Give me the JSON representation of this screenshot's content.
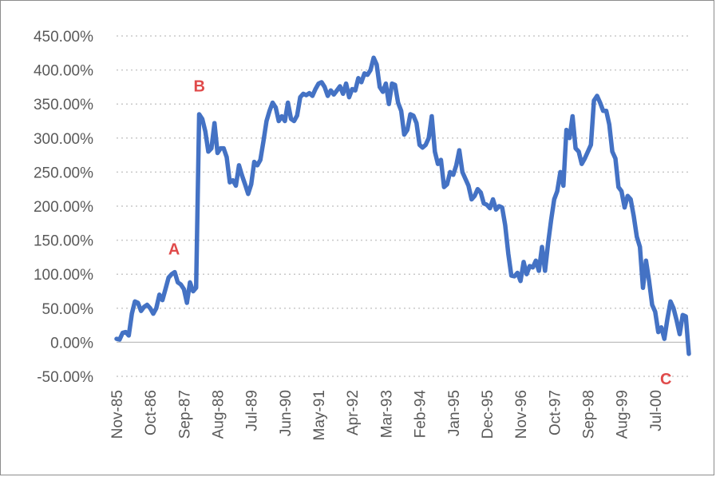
{
  "chart_data": {
    "type": "line",
    "title": "",
    "xlabel": "",
    "ylabel": "",
    "ylim": [
      -50,
      450
    ],
    "y_ticks": [
      450,
      400,
      350,
      300,
      250,
      200,
      150,
      100,
      50,
      0,
      -50
    ],
    "y_tick_labels": [
      "450.00%",
      "400.00%",
      "350.00%",
      "300.00%",
      "250.00%",
      "200.00%",
      "150.00%",
      "100.00%",
      "50.00%",
      "0.00%",
      "-50.00%"
    ],
    "x_tick_labels": [
      "Nov-85",
      "Oct-86",
      "Sep-87",
      "Aug-88",
      "Jul-89",
      "Jun-90",
      "May-91",
      "Apr-92",
      "Mar-93",
      "Feb-94",
      "Jan-95",
      "Dec-95",
      "Nov-96",
      "Oct-97",
      "Sep-98",
      "Aug-99",
      "Jul-00"
    ],
    "x_start": "Nov-85",
    "x_end": "Jun-01",
    "gridlines": "horizontal, dotted",
    "line_color": "#4472c4",
    "annotation_color": "#e04a4a",
    "annotations": [
      {
        "label": "A",
        "x": "Apr-87",
        "y": 103
      },
      {
        "label": "B",
        "x": "Oct-87",
        "y": 338
      },
      {
        "label": "C",
        "x": "Jun-01",
        "y": -17
      }
    ],
    "series": [
      {
        "values": [
          [
            0,
            5
          ],
          [
            1,
            4
          ],
          [
            2,
            14
          ],
          [
            3,
            15
          ],
          [
            4,
            10
          ],
          [
            5,
            42
          ],
          [
            6,
            60
          ],
          [
            7,
            58
          ],
          [
            8,
            46
          ],
          [
            9,
            52
          ],
          [
            10,
            55
          ],
          [
            11,
            50
          ],
          [
            12,
            42
          ],
          [
            13,
            50
          ],
          [
            14,
            70
          ],
          [
            15,
            62
          ],
          [
            16,
            78
          ],
          [
            17,
            95
          ],
          [
            18,
            100
          ],
          [
            19,
            103
          ],
          [
            20,
            88
          ],
          [
            21,
            85
          ],
          [
            22,
            78
          ],
          [
            23,
            58
          ],
          [
            24,
            88
          ],
          [
            25,
            75
          ],
          [
            26,
            80
          ],
          [
            27,
            335
          ],
          [
            28,
            328
          ],
          [
            29,
            310
          ],
          [
            30,
            280
          ],
          [
            31,
            285
          ],
          [
            32,
            322
          ],
          [
            33,
            278
          ],
          [
            34,
            285
          ],
          [
            35,
            285
          ],
          [
            36,
            272
          ],
          [
            37,
            235
          ],
          [
            38,
            238
          ],
          [
            39,
            230
          ],
          [
            40,
            260
          ],
          [
            41,
            245
          ],
          [
            42,
            232
          ],
          [
            43,
            218
          ],
          [
            44,
            232
          ],
          [
            45,
            265
          ],
          [
            46,
            260
          ],
          [
            47,
            268
          ],
          [
            48,
            295
          ],
          [
            49,
            325
          ],
          [
            50,
            340
          ],
          [
            51,
            352
          ],
          [
            52,
            345
          ],
          [
            53,
            325
          ],
          [
            54,
            332
          ],
          [
            55,
            325
          ],
          [
            56,
            352
          ],
          [
            57,
            328
          ],
          [
            58,
            325
          ],
          [
            59,
            333
          ],
          [
            60,
            360
          ],
          [
            61,
            365
          ],
          [
            62,
            363
          ],
          [
            63,
            366
          ],
          [
            64,
            362
          ],
          [
            65,
            372
          ],
          [
            66,
            380
          ],
          [
            67,
            382
          ],
          [
            68,
            375
          ],
          [
            69,
            362
          ],
          [
            70,
            370
          ],
          [
            71,
            364
          ],
          [
            72,
            370
          ],
          [
            73,
            376
          ],
          [
            74,
            365
          ],
          [
            75,
            380
          ],
          [
            76,
            360
          ],
          [
            77,
            372
          ],
          [
            78,
            370
          ],
          [
            79,
            388
          ],
          [
            80,
            382
          ],
          [
            81,
            395
          ],
          [
            82,
            393
          ],
          [
            83,
            400
          ],
          [
            84,
            418
          ],
          [
            85,
            408
          ],
          [
            86,
            375
          ],
          [
            87,
            368
          ],
          [
            88,
            380
          ],
          [
            89,
            350
          ],
          [
            90,
            380
          ],
          [
            91,
            378
          ],
          [
            92,
            352
          ],
          [
            93,
            340
          ],
          [
            94,
            305
          ],
          [
            95,
            312
          ],
          [
            96,
            335
          ],
          [
            97,
            333
          ],
          [
            98,
            322
          ],
          [
            99,
            290
          ],
          [
            100,
            286
          ],
          [
            101,
            290
          ],
          [
            102,
            300
          ],
          [
            103,
            332
          ],
          [
            104,
            280
          ],
          [
            105,
            262
          ],
          [
            106,
            268
          ],
          [
            107,
            228
          ],
          [
            108,
            232
          ],
          [
            109,
            250
          ],
          [
            110,
            246
          ],
          [
            111,
            260
          ],
          [
            112,
            282
          ],
          [
            113,
            250
          ],
          [
            114,
            240
          ],
          [
            115,
            230
          ],
          [
            116,
            210
          ],
          [
            117,
            215
          ],
          [
            118,
            225
          ],
          [
            119,
            220
          ],
          [
            120,
            204
          ],
          [
            121,
            202
          ],
          [
            122,
            197
          ],
          [
            123,
            210
          ],
          [
            124,
            195
          ],
          [
            125,
            200
          ],
          [
            126,
            198
          ],
          [
            127,
            172
          ],
          [
            128,
            130
          ],
          [
            129,
            98
          ],
          [
            130,
            97
          ],
          [
            131,
            102
          ],
          [
            132,
            90
          ],
          [
            133,
            118
          ],
          [
            134,
            100
          ],
          [
            135,
            112
          ],
          [
            136,
            110
          ],
          [
            137,
            120
          ],
          [
            138,
            105
          ],
          [
            139,
            140
          ],
          [
            140,
            105
          ],
          [
            141,
            145
          ],
          [
            142,
            180
          ],
          [
            143,
            210
          ],
          [
            144,
            222
          ],
          [
            145,
            250
          ],
          [
            146,
            230
          ],
          [
            147,
            312
          ],
          [
            148,
            300
          ],
          [
            149,
            332
          ],
          [
            150,
            285
          ],
          [
            151,
            280
          ],
          [
            152,
            262
          ],
          [
            153,
            270
          ],
          [
            154,
            280
          ],
          [
            155,
            290
          ],
          [
            156,
            355
          ],
          [
            157,
            362
          ],
          [
            158,
            352
          ],
          [
            159,
            340
          ],
          [
            160,
            340
          ],
          [
            161,
            320
          ],
          [
            162,
            280
          ],
          [
            163,
            270
          ],
          [
            164,
            228
          ],
          [
            165,
            222
          ],
          [
            166,
            198
          ],
          [
            167,
            215
          ],
          [
            168,
            210
          ],
          [
            169,
            185
          ],
          [
            170,
            155
          ],
          [
            171,
            140
          ],
          [
            172,
            80
          ],
          [
            173,
            120
          ],
          [
            174,
            90
          ],
          [
            175,
            55
          ],
          [
            176,
            45
          ],
          [
            177,
            15
          ],
          [
            178,
            22
          ],
          [
            179,
            5
          ],
          [
            180,
            35
          ],
          [
            181,
            60
          ],
          [
            182,
            50
          ],
          [
            183,
            32
          ],
          [
            184,
            12
          ],
          [
            185,
            40
          ],
          [
            186,
            38
          ],
          [
            187,
            -17
          ]
        ]
      }
    ]
  }
}
